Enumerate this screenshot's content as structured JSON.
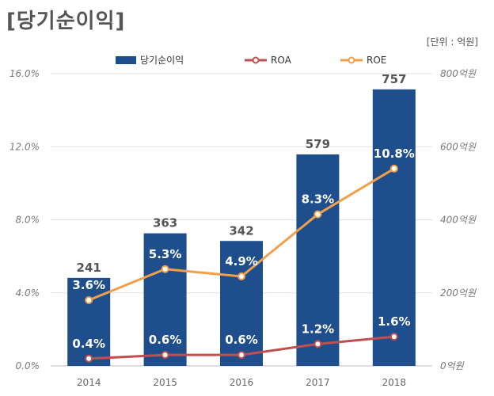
{
  "page": {
    "title": "[당기순이익]",
    "unit": "[단위 : 억원]"
  },
  "chart_data": {
    "type": "bar",
    "categories": [
      "2014",
      "2015",
      "2016",
      "2017",
      "2018"
    ],
    "series": [
      {
        "name": "당기순이익",
        "type": "bar",
        "axis": "right",
        "values": [
          241,
          363,
          342,
          579,
          757
        ],
        "labels": [
          "241",
          "363",
          "342",
          "579",
          "757"
        ],
        "color": "#1f4e8c"
      },
      {
        "name": "ROA",
        "type": "line",
        "axis": "left",
        "values": [
          0.4,
          0.6,
          0.6,
          1.2,
          1.6
        ],
        "labels": [
          "0.4%",
          "0.6%",
          "0.6%",
          "1.2%",
          "1.6%"
        ],
        "color": "#c0504d"
      },
      {
        "name": "ROE",
        "type": "line",
        "axis": "left",
        "values": [
          3.6,
          5.3,
          4.9,
          8.3,
          10.8
        ],
        "labels": [
          "3.6%",
          "5.3%",
          "4.9%",
          "8.3%",
          "10.8%"
        ],
        "color": "#f0a04b"
      }
    ],
    "left_axis": {
      "ylim": [
        0,
        16
      ],
      "ticks": [
        "0.0%",
        "4.0%",
        "8.0%",
        "12.0%",
        "16.0%"
      ]
    },
    "right_axis": {
      "ylim": [
        0,
        800
      ],
      "ticks": [
        "0억원",
        "200억원",
        "400억원",
        "600억원",
        "800억원"
      ]
    },
    "grid": true,
    "legend": "top"
  }
}
